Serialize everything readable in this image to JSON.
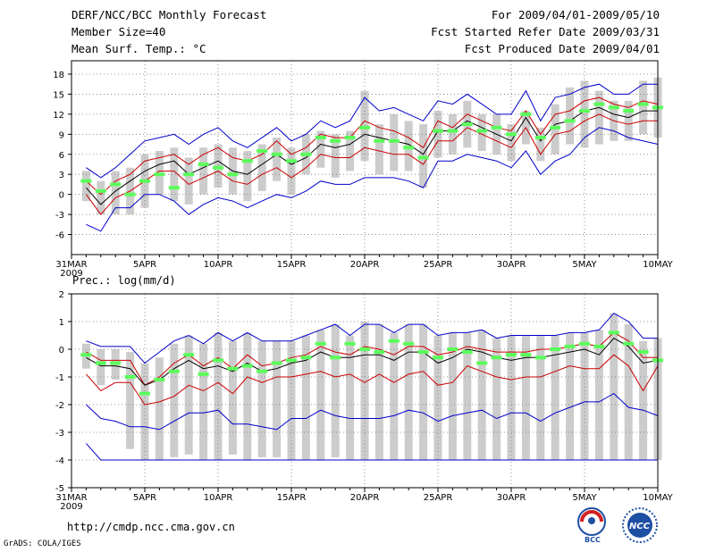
{
  "header": {
    "title": "DERF/NCC/BCC Monthly Forecast",
    "member_size": "Member Size=40",
    "variable_label": "Mean Surf. Temp.: °C",
    "period": "For 2009/04/01-2009/05/10",
    "fcst_started": "Fcst Started Refer Date 2009/03/31",
    "fcst_produced": "Fcst Produced Date 2009/04/01"
  },
  "footer": {
    "url": "http://cmdp.ncc.cma.gov.cn",
    "credit": "GrADS: COLA/IGES",
    "logo_bcc": "BCC",
    "logo_ncc": "NCC"
  },
  "colors": {
    "box": "#cccccc",
    "mean": "#00aa00",
    "bright_mean": "#5aff5a",
    "median": "#000000",
    "inner": "#cc0000",
    "outer": "#0000cc",
    "grid": "#777777"
  },
  "chart_data": [
    {
      "type": "line",
      "title": "Mean Surf. Temp.: °C",
      "xlabel": "",
      "ylabel": "°C",
      "ylim": [
        -9,
        20
      ],
      "yticks": [
        -6,
        -3,
        0,
        3,
        6,
        9,
        12,
        15,
        18
      ],
      "x_day_range": [
        0,
        40
      ],
      "x_ticks": [
        {
          "day": 0,
          "label": "31MAR",
          "sub": "2009"
        },
        {
          "day": 5,
          "label": "5APR"
        },
        {
          "day": 10,
          "label": "10APR"
        },
        {
          "day": 15,
          "label": "15APR"
        },
        {
          "day": 20,
          "label": "20APR"
        },
        {
          "day": 25,
          "label": "25APR"
        },
        {
          "day": 30,
          "label": "30APR"
        },
        {
          "day": 35,
          "label": "5MAY"
        },
        {
          "day": 40,
          "label": "10MAY"
        }
      ],
      "days": [
        1,
        2,
        3,
        4,
        5,
        6,
        7,
        8,
        9,
        10,
        11,
        12,
        13,
        14,
        15,
        16,
        17,
        18,
        19,
        20,
        21,
        22,
        23,
        24,
        25,
        26,
        27,
        28,
        29,
        30,
        31,
        32,
        33,
        34,
        35,
        36,
        37,
        38,
        39,
        40
      ],
      "series": [
        {
          "name": "max",
          "values": [
            4,
            2.5,
            4,
            6,
            8,
            8.5,
            9,
            7.5,
            9,
            10,
            8,
            7,
            8.5,
            10,
            8,
            9,
            11,
            10,
            11,
            14.5,
            12.5,
            13,
            12,
            11,
            14,
            13.5,
            15,
            13.5,
            12,
            12,
            15.5,
            11,
            14.5,
            15,
            16,
            16.5,
            15,
            15,
            16.5,
            16.5
          ]
        },
        {
          "name": "upper",
          "values": [
            2,
            0,
            2,
            3,
            5,
            5.5,
            6,
            4.5,
            6,
            7,
            5.5,
            5,
            6,
            8,
            6,
            7,
            9,
            8.5,
            8.5,
            11,
            10,
            9.5,
            8.5,
            7,
            11,
            10,
            12,
            11,
            10,
            9.5,
            12.5,
            9,
            12,
            12.5,
            14,
            14.5,
            13.5,
            13,
            14,
            13.5
          ]
        },
        {
          "name": "median",
          "values": [
            1,
            -1.5,
            0.5,
            2,
            3.5,
            4.5,
            5,
            3,
            4,
            5,
            3.5,
            3,
            4.5,
            6,
            4.5,
            5.5,
            7.5,
            7,
            7.5,
            9,
            8.5,
            8,
            7.5,
            6,
            9.5,
            9.5,
            11,
            10,
            9,
            8,
            11.5,
            8,
            10.5,
            11,
            12.5,
            13,
            12,
            11.5,
            12.5,
            12.5
          ]
        },
        {
          "name": "lower",
          "values": [
            0,
            -3,
            -0.5,
            0.5,
            2,
            3.5,
            3.5,
            1.5,
            2.5,
            3.5,
            2,
            1.5,
            3,
            4,
            2.5,
            4,
            6,
            5.5,
            5.5,
            7,
            6.5,
            6,
            6,
            4.5,
            8,
            8,
            10,
            9,
            8,
            7,
            10,
            6,
            9,
            9.5,
            11,
            12,
            11,
            10.5,
            11,
            11
          ]
        },
        {
          "name": "min",
          "values": [
            -4.5,
            -5.5,
            -2,
            -2,
            0,
            0,
            -1,
            -3,
            -1.5,
            -0.5,
            -1,
            -2,
            -1,
            0,
            -0.5,
            0.5,
            2,
            1.5,
            1.5,
            2.5,
            2.5,
            2.5,
            2,
            1,
            5,
            5,
            6,
            5.5,
            5,
            4,
            6.5,
            3,
            5,
            6,
            8.5,
            10,
            9.5,
            8.5,
            8,
            7.5
          ]
        },
        {
          "name": "box_top",
          "values": [
            3.5,
            2,
            3.5,
            4,
            6,
            6.5,
            7,
            5.5,
            7,
            7.5,
            7,
            6.5,
            7.5,
            8.5,
            7,
            9,
            9.5,
            9,
            9.5,
            15.5,
            10.5,
            12,
            11,
            10.5,
            12.5,
            12,
            14,
            12,
            12,
            10.5,
            12.5,
            10,
            13.5,
            16,
            17,
            15.5,
            14,
            14,
            17,
            17.5
          ]
        },
        {
          "name": "box_bottom",
          "values": [
            -1,
            -3,
            -3,
            -3,
            -2,
            0,
            -1,
            -1.5,
            0,
            1,
            0,
            -1,
            0.5,
            2,
            0,
            3,
            4,
            2.5,
            3.5,
            5,
            3,
            3.5,
            3.5,
            1,
            5.5,
            6,
            7,
            6.5,
            6,
            5,
            7.5,
            5,
            6,
            7.5,
            7,
            7.5,
            8,
            8,
            9,
            8.5
          ]
        },
        {
          "name": "mean",
          "values": [
            2,
            0.5,
            1.5,
            0,
            2,
            3,
            1,
            3,
            4.5,
            4,
            3,
            5,
            6.5,
            6,
            5,
            6,
            8.5,
            8,
            8.5,
            10,
            8,
            8,
            7,
            5.5,
            9.5,
            9.5,
            10.5,
            9.5,
            10,
            9,
            12,
            8.5,
            10,
            11,
            12.5,
            13.5,
            13,
            12.5,
            13.5,
            13
          ]
        }
      ]
    },
    {
      "type": "line",
      "title": "Prec.: log(mm/d)",
      "xlabel": "",
      "ylabel": "log(mm/d)",
      "ylim": [
        -5,
        2
      ],
      "yticks": [
        -5,
        -4,
        -3,
        -2,
        -1,
        0,
        1,
        2
      ],
      "x_day_range": [
        0,
        40
      ],
      "x_ticks": [
        {
          "day": 0,
          "label": "31MAR",
          "sub": "2009"
        },
        {
          "day": 5,
          "label": "5APR"
        },
        {
          "day": 10,
          "label": "10APR"
        },
        {
          "day": 15,
          "label": "15APR"
        },
        {
          "day": 20,
          "label": "20APR"
        },
        {
          "day": 25,
          "label": "25APR"
        },
        {
          "day": 30,
          "label": "30APR"
        },
        {
          "day": 35,
          "label": "5MAY"
        },
        {
          "day": 40,
          "label": "10MAY"
        }
      ],
      "days": [
        1,
        2,
        3,
        4,
        5,
        6,
        7,
        8,
        9,
        10,
        11,
        12,
        13,
        14,
        15,
        16,
        17,
        18,
        19,
        20,
        21,
        22,
        23,
        24,
        25,
        26,
        27,
        28,
        29,
        30,
        31,
        32,
        33,
        34,
        35,
        36,
        37,
        38,
        39,
        40
      ],
      "series": [
        {
          "name": "max",
          "values": [
            0.3,
            0.1,
            0.1,
            0.1,
            -0.5,
            -0.1,
            0.3,
            0.5,
            0.2,
            0.6,
            0.3,
            0.6,
            0.3,
            0.3,
            0.3,
            0.5,
            0.7,
            0.9,
            0.5,
            0.9,
            0.9,
            0.6,
            0.9,
            0.9,
            0.5,
            0.6,
            0.6,
            0.7,
            0.4,
            0.5,
            0.5,
            0.5,
            0.5,
            0.6,
            0.6,
            0.7,
            1.3,
            1.0,
            0.4,
            0.4
          ]
        },
        {
          "name": "upper",
          "values": [
            -0.1,
            -0.4,
            -0.4,
            -0.4,
            -1.3,
            -1.0,
            -0.5,
            -0.2,
            -0.6,
            -0.3,
            -0.7,
            -0.2,
            -0.6,
            -0.5,
            -0.3,
            -0.2,
            0.1,
            -0.1,
            -0.2,
            0.1,
            0.0,
            -0.2,
            0.1,
            0.1,
            -0.2,
            -0.1,
            0.1,
            0.0,
            -0.1,
            -0.1,
            -0.1,
            0.0,
            0.0,
            0.1,
            0.2,
            0.1,
            0.6,
            0.3,
            -0.3,
            -0.3
          ]
        },
        {
          "name": "median",
          "values": [
            -0.3,
            -0.6,
            -0.6,
            -0.7,
            -1.3,
            -1.1,
            -0.7,
            -0.4,
            -0.7,
            -0.6,
            -0.8,
            -0.5,
            -0.8,
            -0.7,
            -0.5,
            -0.4,
            -0.1,
            -0.3,
            -0.3,
            -0.2,
            -0.2,
            -0.4,
            -0.1,
            -0.1,
            -0.5,
            -0.3,
            0.0,
            -0.1,
            -0.3,
            -0.4,
            -0.3,
            -0.3,
            -0.2,
            -0.1,
            0.0,
            -0.2,
            0.4,
            0.1,
            -0.5,
            -0.4
          ]
        },
        {
          "name": "lower",
          "values": [
            -0.9,
            -1.5,
            -1.2,
            -1.2,
            -2.0,
            -1.9,
            -1.7,
            -1.3,
            -1.5,
            -1.2,
            -1.6,
            -1.0,
            -1.2,
            -1.0,
            -1.0,
            -0.9,
            -0.8,
            -1.0,
            -0.9,
            -1.2,
            -0.9,
            -1.2,
            -0.9,
            -0.8,
            -1.3,
            -1.2,
            -0.6,
            -0.8,
            -1.0,
            -1.1,
            -1.0,
            -1.0,
            -0.8,
            -0.6,
            -0.7,
            -0.7,
            -0.2,
            -0.6,
            -1.5,
            -0.6
          ]
        },
        {
          "name": "min",
          "values": [
            -2.0,
            -2.5,
            -2.6,
            -2.8,
            -2.8,
            -2.9,
            -2.6,
            -2.3,
            -2.3,
            -2.2,
            -2.7,
            -2.7,
            -2.8,
            -2.9,
            -2.5,
            -2.5,
            -2.2,
            -2.4,
            -2.5,
            -2.5,
            -2.5,
            -2.4,
            -2.2,
            -2.3,
            -2.6,
            -2.4,
            -2.3,
            -2.2,
            -2.5,
            -2.3,
            -2.3,
            -2.6,
            -2.3,
            -2.1,
            -1.9,
            -1.9,
            -1.6,
            -2.1,
            -2.2,
            -2.4
          ]
        },
        {
          "name": "floor",
          "values": [
            -3.4,
            -4.0,
            -4.0,
            -4.0,
            -4.0,
            -4.0,
            -4.0,
            -4.0,
            -4.0,
            -4.0,
            -4.0,
            -4.0,
            -4.0,
            -4.0,
            -4.0,
            -4.0,
            -4.0,
            -4.0,
            -4.0,
            -4.0,
            -4.0,
            -4.0,
            -4.0,
            -4.0,
            -4.0,
            -4.0,
            -4.0,
            -4.0,
            -4.0,
            -4.0,
            -4.0,
            -4.0,
            -4.0,
            -4.0,
            -4.0,
            -4.0,
            -4.0,
            -4.0,
            -4.0,
            -4.0
          ]
        },
        {
          "name": "box_top",
          "values": [
            0.2,
            0.0,
            0.0,
            -0.1,
            -0.5,
            -0.3,
            0.2,
            0.5,
            0.2,
            0.6,
            0.3,
            0.6,
            0.3,
            0.3,
            0.3,
            0.5,
            0.7,
            0.9,
            0.5,
            1.0,
            0.9,
            0.6,
            0.9,
            0.9,
            0.5,
            0.6,
            0.6,
            0.7,
            0.4,
            0.5,
            0.5,
            0.5,
            0.5,
            0.6,
            0.6,
            0.7,
            1.3,
            0.9,
            0.3,
            0.4
          ]
        },
        {
          "name": "box_bottom",
          "values": [
            -0.7,
            -1.3,
            -1.1,
            -3.6,
            -4.0,
            -4.0,
            -3.9,
            -3.8,
            -4.0,
            -4.0,
            -3.8,
            -4.0,
            -3.9,
            -3.9,
            -4.0,
            -4.0,
            -4.0,
            -3.9,
            -4.0,
            -4.0,
            -4.0,
            -4.0,
            -4.0,
            -4.0,
            -4.0,
            -4.0,
            -4.0,
            -4.0,
            -4.0,
            -4.0,
            -4.0,
            -4.0,
            -4.0,
            -4.0,
            -4.0,
            -4.0,
            -4.0,
            -4.0,
            -4.0,
            -4.0
          ]
        },
        {
          "name": "mean",
          "values": [
            -0.2,
            -0.5,
            -0.5,
            -1.0,
            -1.6,
            -1.1,
            -0.8,
            -0.2,
            -0.9,
            -0.4,
            -0.7,
            -0.6,
            -0.8,
            -0.5,
            -0.4,
            -0.3,
            0.2,
            -0.3,
            0.2,
            0.0,
            -0.1,
            0.3,
            0.2,
            -0.1,
            -0.3,
            0.0,
            -0.1,
            -0.5,
            -0.3,
            -0.2,
            -0.2,
            -0.3,
            0.0,
            0.1,
            0.2,
            0.1,
            0.6,
            0.2,
            -0.1,
            -0.4
          ]
        }
      ]
    }
  ]
}
